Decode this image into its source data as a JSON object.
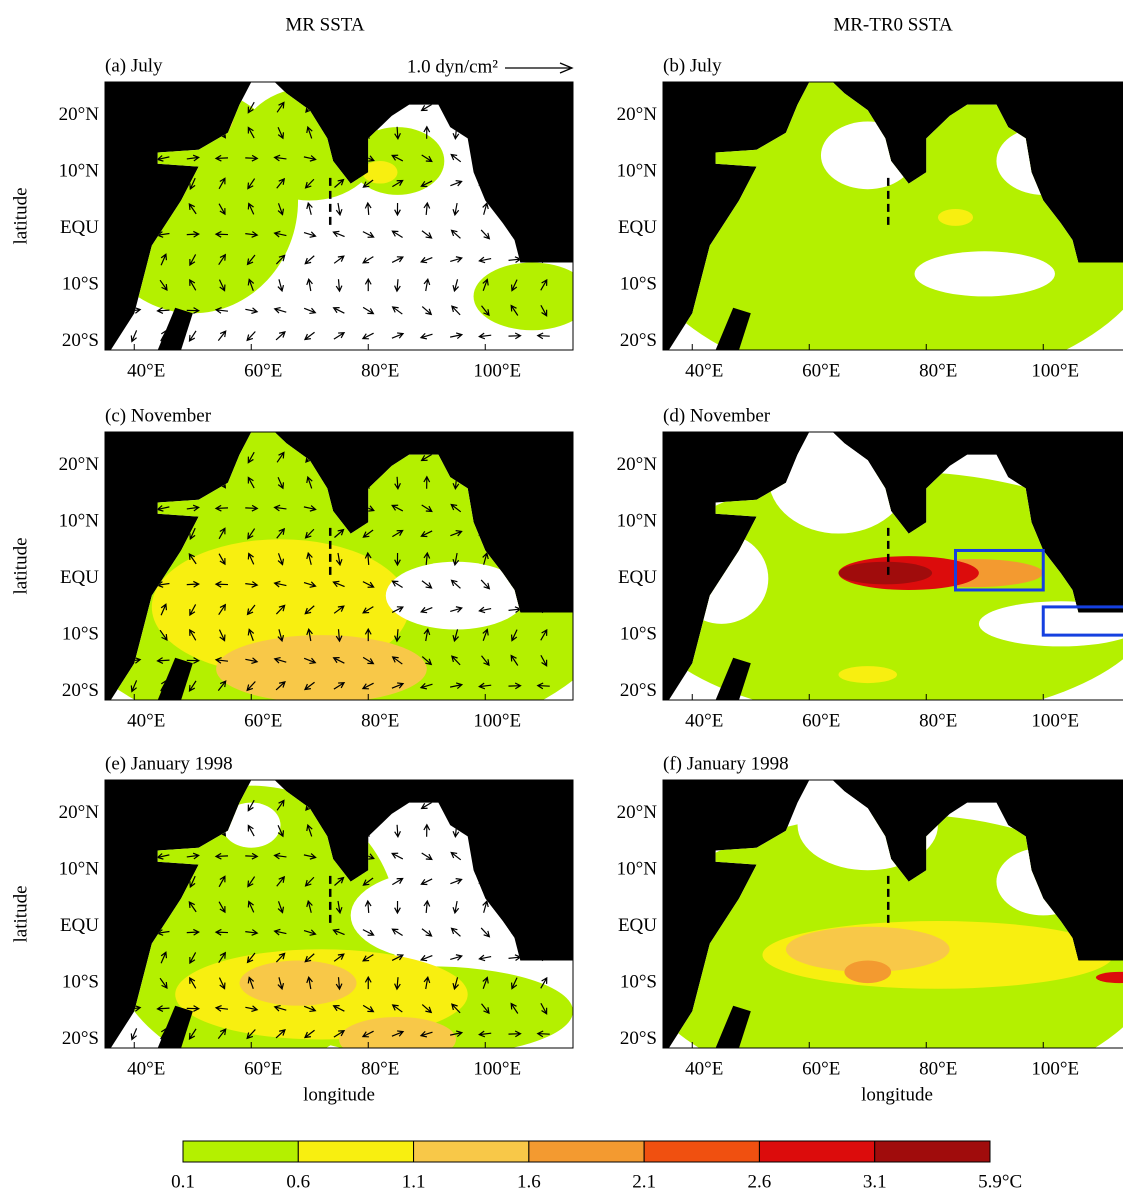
{
  "columns": [
    "MR SSTA",
    "MR-TR0 SSTA"
  ],
  "reference_vector": "1.0 dyn/cm²",
  "panels": [
    {
      "label": "(a) July"
    },
    {
      "label": "(b) July"
    },
    {
      "label": "(c) November"
    },
    {
      "label": "(d) November"
    },
    {
      "label": "(e) January 1998"
    },
    {
      "label": "(f) January 1998"
    }
  ],
  "map": {
    "xlim": [
      35,
      115
    ],
    "ylim": [
      -21.5,
      26
    ],
    "xticks": [
      {
        "value": 40,
        "label": "40°E"
      },
      {
        "value": 60,
        "label": "60°E"
      },
      {
        "value": 80,
        "label": "80°E"
      },
      {
        "value": 100,
        "label": "100°E"
      }
    ],
    "yticks": [
      {
        "value": -20,
        "label": "20°S"
      },
      {
        "value": -10,
        "label": "10°S"
      },
      {
        "value": 0,
        "label": "EQU"
      },
      {
        "value": 10,
        "label": "10°N"
      },
      {
        "value": 20,
        "label": "20°N"
      }
    ],
    "x_label": "longitude",
    "y_label": "latitude"
  },
  "colorbar": {
    "levels": [
      0.1,
      0.6,
      1.1,
      1.6,
      2.1,
      2.6,
      3.1,
      5.9
    ],
    "colors": [
      "#b4f000",
      "#f8ef10",
      "#f8c848",
      "#f39a30",
      "#f05010",
      "#dc0c0c",
      "#a00c0c"
    ],
    "unit": "°C"
  }
}
